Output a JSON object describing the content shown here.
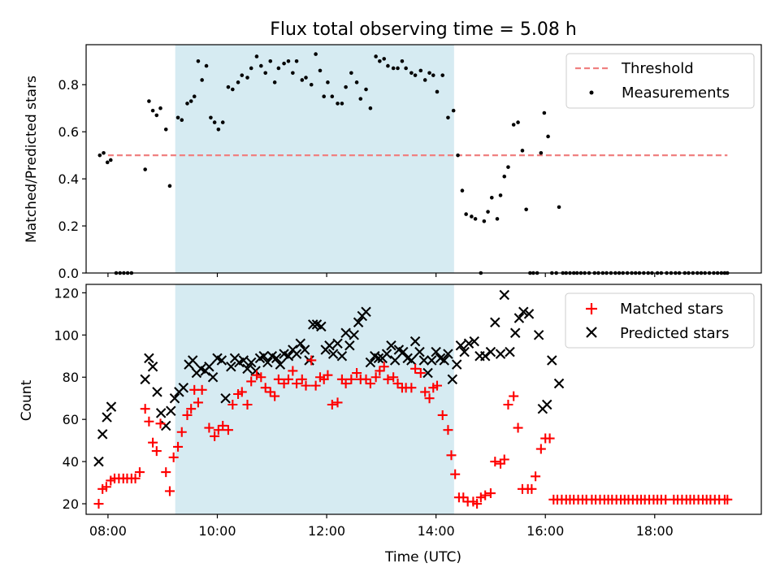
{
  "chart_data": [
    {
      "type": "scatter",
      "panel": "top",
      "title": "Flux total observing time = 5.08 h",
      "xlabel": "",
      "ylabel": "Matched/Predicted stars",
      "xlim": [
        7.6,
        19.95
      ],
      "ylim": [
        0,
        0.97
      ],
      "yticks": [
        0.0,
        0.2,
        0.4,
        0.6,
        0.8
      ],
      "ytick_labels": [
        "0.0",
        "0.2",
        "0.4",
        "0.6",
        "0.8"
      ],
      "xticks": [
        8,
        10,
        12,
        14,
        16,
        18
      ],
      "shaded_span": [
        9.23,
        14.33
      ],
      "threshold": {
        "label": "Threshold",
        "value": 0.5,
        "x_range": [
          8.0,
          19.33
        ],
        "color": "#f08080"
      },
      "legend": [
        {
          "label": "Threshold",
          "marker": "dashed-line",
          "color": "#f08080"
        },
        {
          "label": "Measurements",
          "marker": "dot",
          "color": "#000000"
        }
      ],
      "series": [
        {
          "name": "Measurements",
          "color": "#000000",
          "x": [
            7.85,
            7.92,
            7.99,
            8.05,
            8.15,
            8.22,
            8.29,
            8.36,
            8.43,
            8.68,
            8.75,
            8.82,
            8.89,
            8.96,
            9.06,
            9.13,
            9.28,
            9.35,
            9.45,
            9.52,
            9.58,
            9.65,
            9.72,
            9.8,
            9.88,
            9.95,
            10.02,
            10.1,
            10.2,
            10.28,
            10.38,
            10.45,
            10.55,
            10.62,
            10.72,
            10.8,
            10.88,
            10.97,
            11.05,
            11.12,
            11.22,
            11.3,
            11.38,
            11.45,
            11.55,
            11.62,
            11.72,
            11.8,
            11.88,
            11.95,
            12.02,
            12.1,
            12.2,
            12.28,
            12.35,
            12.45,
            12.55,
            12.62,
            12.72,
            12.8,
            12.9,
            12.97,
            13.05,
            13.12,
            13.22,
            13.3,
            13.38,
            13.45,
            13.55,
            13.62,
            13.72,
            13.8,
            13.88,
            13.95,
            14.02,
            14.12,
            14.22,
            14.32,
            14.4,
            14.48,
            14.55,
            14.65,
            14.72,
            14.82,
            14.88,
            14.95,
            15.02,
            15.12,
            15.18,
            15.25,
            15.32,
            15.42,
            15.5,
            15.58,
            15.65,
            15.72,
            15.78,
            15.85,
            15.92,
            15.98,
            16.05,
            16.12,
            16.2,
            16.25,
            16.32,
            16.38,
            16.45,
            16.52,
            16.58,
            16.65,
            16.72,
            16.8,
            16.9,
            16.97,
            17.05,
            17.12,
            17.2,
            17.28,
            17.35,
            17.42,
            17.5,
            17.58,
            17.65,
            17.72,
            17.8,
            17.88,
            17.95,
            18.05,
            18.12,
            18.22,
            18.3,
            18.38,
            18.45,
            18.55,
            18.62,
            18.7,
            18.78,
            18.85,
            18.92,
            19.0,
            19.08,
            19.15,
            19.22,
            19.28,
            19.33
          ],
          "y": [
            0.5,
            0.51,
            0.47,
            0.48,
            0.0,
            0.0,
            0.0,
            0.0,
            0.0,
            0.44,
            0.73,
            0.69,
            0.67,
            0.7,
            0.61,
            0.37,
            0.66,
            0.65,
            0.72,
            0.73,
            0.75,
            0.9,
            0.82,
            0.88,
            0.66,
            0.64,
            0.61,
            0.64,
            0.79,
            0.78,
            0.81,
            0.84,
            0.83,
            0.87,
            0.92,
            0.88,
            0.85,
            0.9,
            0.81,
            0.87,
            0.89,
            0.9,
            0.85,
            0.9,
            0.82,
            0.83,
            0.8,
            0.93,
            0.86,
            0.75,
            0.81,
            0.75,
            0.72,
            0.72,
            0.79,
            0.85,
            0.81,
            0.74,
            0.78,
            0.7,
            0.92,
            0.9,
            0.91,
            0.88,
            0.87,
            0.87,
            0.9,
            0.87,
            0.85,
            0.84,
            0.86,
            0.82,
            0.85,
            0.84,
            0.77,
            0.84,
            0.66,
            0.69,
            0.5,
            0.35,
            0.25,
            0.24,
            0.23,
            0.0,
            0.22,
            0.26,
            0.32,
            0.23,
            0.33,
            0.41,
            0.45,
            0.63,
            0.64,
            0.52,
            0.27,
            0.0,
            0.0,
            0.0,
            0.51,
            0.68,
            0.58,
            0.0,
            0.0,
            0.28,
            0.0,
            0.0,
            0.0,
            0.0,
            0.0,
            0.0,
            0.0,
            0.0,
            0.0,
            0.0,
            0.0,
            0.0,
            0.0,
            0.0,
            0.0,
            0.0,
            0.0,
            0.0,
            0.0,
            0.0,
            0.0,
            0.0,
            0.0,
            0.0,
            0.0,
            0.0,
            0.0,
            0.0,
            0.0,
            0.0,
            0.0,
            0.0,
            0.0,
            0.0,
            0.0,
            0.0,
            0.0,
            0.0,
            0.0,
            0.0,
            0.0
          ]
        }
      ]
    },
    {
      "type": "scatter",
      "panel": "bottom",
      "title": "",
      "xlabel": "Time (UTC)",
      "ylabel": "Count",
      "xlim": [
        7.6,
        19.95
      ],
      "ylim": [
        15,
        124
      ],
      "yticks": [
        20,
        40,
        60,
        80,
        100,
        120
      ],
      "ytick_labels": [
        "20",
        "40",
        "60",
        "80",
        "100",
        "120"
      ],
      "xticks": [
        8,
        10,
        12,
        14,
        16,
        18
      ],
      "xtick_labels": [
        "08:00",
        "10:00",
        "12:00",
        "14:00",
        "16:00",
        "18:00"
      ],
      "shaded_span": [
        9.23,
        14.33
      ],
      "legend": [
        {
          "label": "Matched stars",
          "marker": "plus",
          "color": "#ff0000"
        },
        {
          "label": "Predicted stars",
          "marker": "x",
          "color": "#000000"
        }
      ],
      "series": [
        {
          "name": "Matched stars",
          "color": "#ff0000",
          "x": [
            7.83,
            7.9,
            7.97,
            8.05,
            8.12,
            8.2,
            8.28,
            8.35,
            8.43,
            8.5,
            8.58,
            8.68,
            8.75,
            8.82,
            8.89,
            8.96,
            9.06,
            9.13,
            9.2,
            9.28,
            9.35,
            9.45,
            9.52,
            9.58,
            9.65,
            9.72,
            9.85,
            9.95,
            10.02,
            10.1,
            10.2,
            10.28,
            10.38,
            10.45,
            10.55,
            10.62,
            10.72,
            10.8,
            10.88,
            10.97,
            11.05,
            11.12,
            11.22,
            11.3,
            11.38,
            11.45,
            11.55,
            11.62,
            11.72,
            11.8,
            11.88,
            11.95,
            12.02,
            12.1,
            12.2,
            12.28,
            12.35,
            12.45,
            12.55,
            12.62,
            12.72,
            12.8,
            12.9,
            12.97,
            13.05,
            13.12,
            13.22,
            13.3,
            13.38,
            13.45,
            13.55,
            13.62,
            13.72,
            13.8,
            13.88,
            13.95,
            14.02,
            14.12,
            14.22,
            14.28,
            14.35,
            14.42,
            14.5,
            14.58,
            14.68,
            14.75,
            14.82,
            14.9,
            15.0,
            15.08,
            15.18,
            15.25,
            15.32,
            15.42,
            15.5,
            15.58,
            15.68,
            15.75,
            15.82,
            15.92,
            16.0,
            16.08,
            16.15,
            16.22,
            16.3,
            16.38,
            16.45,
            16.52,
            16.6,
            16.68,
            16.75,
            16.85,
            16.92,
            17.0,
            17.08,
            17.15,
            17.22,
            17.3,
            17.38,
            17.45,
            17.52,
            17.6,
            17.68,
            17.75,
            17.82,
            17.9,
            17.98,
            18.05,
            18.12,
            18.2,
            18.35,
            18.42,
            18.5,
            18.58,
            18.65,
            18.72,
            18.8,
            18.88,
            18.95,
            19.02,
            19.1,
            19.18,
            19.28,
            19.33
          ],
          "y": [
            20,
            27,
            28,
            31,
            32,
            32,
            32,
            32,
            32,
            32,
            35,
            65,
            59,
            49,
            45,
            58,
            35,
            26,
            42,
            47,
            54,
            62,
            65,
            74,
            68,
            74,
            56,
            52,
            55,
            57,
            55,
            67,
            72,
            73,
            67,
            78,
            81,
            80,
            75,
            73,
            71,
            79,
            77,
            79,
            83,
            77,
            79,
            76,
            88,
            76,
            80,
            79,
            81,
            67,
            68,
            79,
            77,
            79,
            82,
            79,
            79,
            77,
            80,
            83,
            85,
            79,
            80,
            77,
            75,
            75,
            75,
            84,
            82,
            73,
            70,
            75,
            76,
            62,
            55,
            43,
            34,
            23,
            23,
            21,
            21,
            20,
            23,
            24,
            25,
            40,
            39,
            41,
            67,
            71,
            56,
            27,
            27,
            27,
            33,
            46,
            51,
            51,
            22,
            22,
            22,
            22,
            22,
            22,
            22,
            22,
            22,
            22,
            22,
            22,
            22,
            22,
            22,
            22,
            22,
            22,
            22,
            22,
            22,
            22,
            22,
            22,
            22,
            22,
            22,
            22,
            22,
            22,
            22,
            22,
            22,
            22,
            22,
            22,
            22,
            22,
            22,
            22,
            22,
            22
          ]
        },
        {
          "name": "Predicted stars",
          "color": "#000000",
          "x": [
            7.83,
            7.9,
            7.98,
            8.06,
            8.68,
            8.75,
            8.82,
            8.9,
            8.97,
            9.06,
            9.15,
            9.22,
            9.3,
            9.38,
            9.48,
            9.55,
            9.62,
            9.7,
            9.78,
            9.85,
            9.92,
            10.0,
            10.08,
            10.15,
            10.25,
            10.32,
            10.4,
            10.48,
            10.55,
            10.62,
            10.7,
            10.78,
            10.85,
            10.92,
            11.0,
            11.08,
            11.15,
            11.22,
            11.3,
            11.38,
            11.45,
            11.52,
            11.6,
            11.68,
            11.75,
            11.82,
            11.9,
            11.98,
            12.05,
            12.12,
            12.2,
            12.28,
            12.35,
            12.42,
            12.5,
            12.58,
            12.65,
            12.72,
            12.8,
            12.88,
            12.95,
            13.02,
            13.1,
            13.18,
            13.25,
            13.32,
            13.4,
            13.48,
            13.55,
            13.62,
            13.7,
            13.78,
            13.85,
            13.92,
            14.0,
            14.08,
            14.15,
            14.22,
            14.3,
            14.38,
            14.45,
            14.52,
            14.6,
            14.7,
            14.8,
            14.9,
            15.0,
            15.08,
            15.18,
            15.25,
            15.35,
            15.45,
            15.52,
            15.6,
            15.7,
            15.88,
            15.95,
            16.03,
            16.12,
            16.25
          ],
          "y": [
            40,
            53,
            61,
            66,
            79,
            89,
            85,
            73,
            63,
            57,
            64,
            70,
            73,
            75,
            86,
            88,
            82,
            84,
            83,
            85,
            80,
            89,
            88,
            70,
            85,
            89,
            87,
            88,
            84,
            87,
            83,
            89,
            90,
            87,
            90,
            89,
            86,
            91,
            90,
            93,
            91,
            96,
            93,
            88,
            105,
            105,
            104,
            93,
            95,
            91,
            96,
            90,
            101,
            95,
            100,
            106,
            109,
            111,
            87,
            90,
            89,
            89,
            91,
            95,
            88,
            93,
            92,
            89,
            88,
            97,
            92,
            88,
            82,
            88,
            92,
            89,
            88,
            91,
            79,
            86,
            95,
            92,
            96,
            97,
            90,
            90,
            92,
            106,
            91,
            119,
            92,
            101,
            108,
            111,
            110,
            100,
            65,
            67,
            88,
            77
          ]
        }
      ]
    }
  ]
}
